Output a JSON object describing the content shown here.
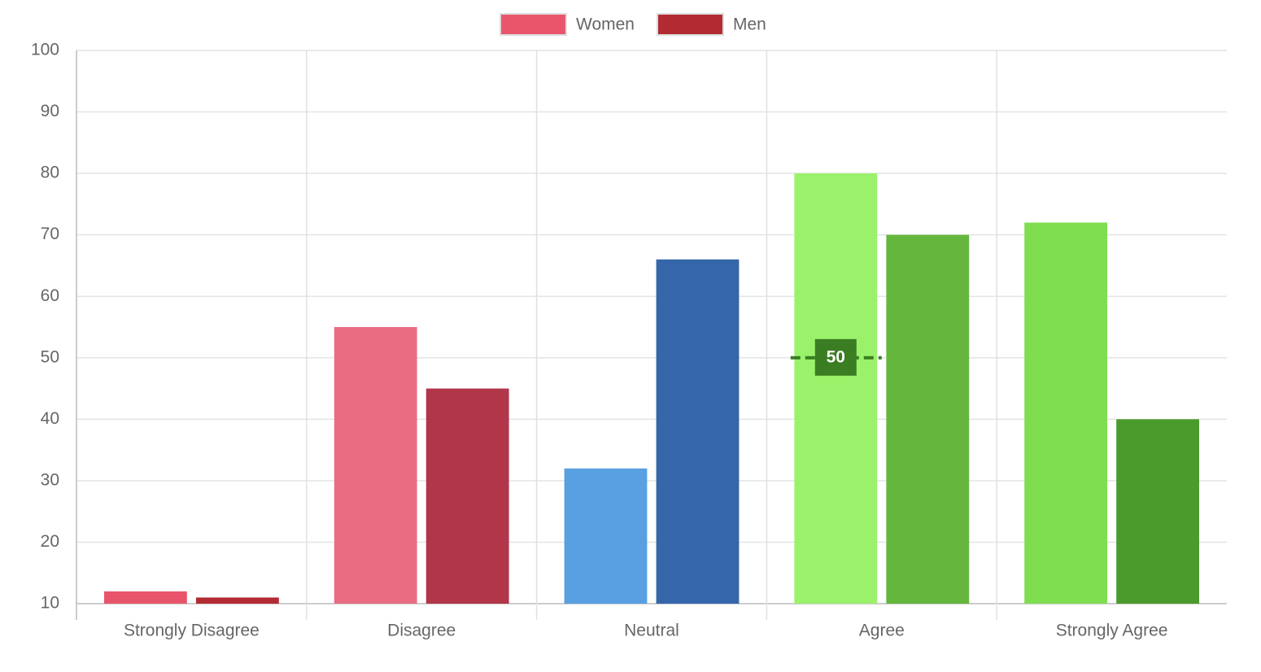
{
  "chart_data": {
    "type": "bar",
    "categories": [
      "Strongly Disagree",
      "Disagree",
      "Neutral",
      "Agree",
      "Strongly Agree"
    ],
    "series": [
      {
        "name": "Women",
        "color": "#e9566b",
        "colors": [
          "#e8546a",
          "#ea6c82",
          "#58a0e2",
          "#9af26a",
          "#7ede50"
        ],
        "values": [
          12,
          55,
          32,
          80,
          72
        ]
      },
      {
        "name": "Men",
        "color": "#b22b32",
        "colors": [
          "#b22b32",
          "#b13649",
          "#3566aa",
          "#64b73c",
          "#4a9a2c"
        ],
        "values": [
          11,
          45,
          66,
          70,
          40
        ]
      }
    ],
    "ylim": [
      10,
      100
    ],
    "yticks": [
      10,
      20,
      30,
      40,
      50,
      60,
      70,
      80,
      90,
      100
    ],
    "grid": true,
    "legend": "top",
    "annotation": {
      "value": 50,
      "category": "Agree",
      "color": "#3a7d22"
    }
  }
}
